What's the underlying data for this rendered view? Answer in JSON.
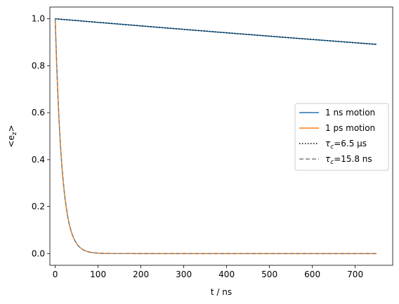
{
  "chart_data": {
    "type": "line",
    "xlabel": "t / ns",
    "ylabel_base": "<e",
    "ylabel_sub": "z",
    "ylabel_end": ">",
    "xlim": [
      -12.5,
      787.5
    ],
    "ylim": [
      -0.05,
      1.05
    ],
    "xticks": [
      0,
      100,
      200,
      300,
      400,
      500,
      600,
      700
    ],
    "yticks": [
      0.0,
      0.2,
      0.4,
      0.6,
      0.8,
      1.0
    ],
    "xtick_labels": [
      "0",
      "100",
      "200",
      "300",
      "400",
      "500",
      "600",
      "700"
    ],
    "ytick_labels": [
      "0.0",
      "0.2",
      "0.4",
      "0.6",
      "0.8",
      "1.0"
    ],
    "grid": false,
    "legend_position": "center-right",
    "series": [
      {
        "name": "1 ns motion",
        "color": "#1f77b4",
        "style": "solid",
        "model": "exp",
        "tau_ns": 6500,
        "x_start": 0,
        "x_end": 750
      },
      {
        "name": "1 ps motion",
        "color": "#ff7f0e",
        "style": "solid",
        "model": "exp",
        "tau_ns": 15.8,
        "x_start": 0,
        "x_end": 750
      },
      {
        "name": "τc=6.5 μs",
        "color": "#000000",
        "style": "dotted",
        "model": "exp",
        "tau_ns": 6500,
        "x_start": 0,
        "x_end": 750
      },
      {
        "name": "τc=15.8 ns",
        "color": "#7f7f7f",
        "style": "dashed",
        "model": "exp",
        "tau_ns": 15.8,
        "x_start": 0,
        "x_end": 750
      }
    ],
    "legend": {
      "entries": [
        {
          "label_main": "1 ns motion",
          "tau_label": false
        },
        {
          "label_main": "1 ps motion",
          "tau_label": false
        },
        {
          "label_main": "τ",
          "sub": "c",
          "rest": "=6.5 μs",
          "tau_label": true
        },
        {
          "label_main": "τ",
          "sub": "c",
          "rest": "=15.8 ns",
          "tau_label": true
        }
      ]
    }
  }
}
